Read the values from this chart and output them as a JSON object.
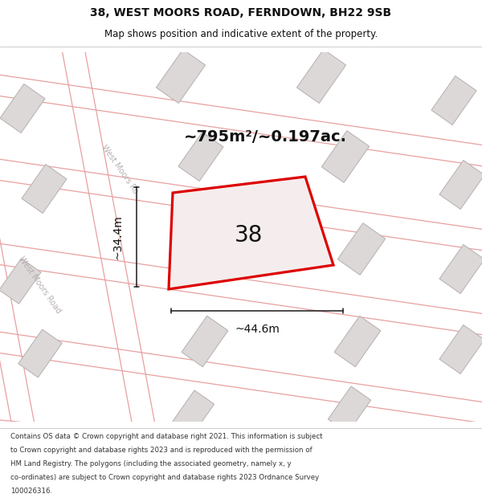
{
  "title_line1": "38, WEST MOORS ROAD, FERNDOWN, BH22 9SB",
  "title_line2": "Map shows position and indicative extent of the property.",
  "area_label": "~795m²/~0.197ac.",
  "width_label": "~44.6m",
  "height_label": "~34.4m",
  "property_number": "38",
  "map_bg": "#f7f4f4",
  "road_line_color": "#e8a0a0",
  "building_fill": "#ddd8d8",
  "building_edge": "#bbb5b5",
  "property_fill": "#f5eded",
  "property_edge": "#dd0000",
  "dim_color": "#1a1a1a",
  "text_color": "#111111",
  "road_label_color": "#b0a8a8",
  "footer_lines": [
    "Contains OS data © Crown copyright and database right 2021. This information is subject",
    "to Crown copyright and database rights 2023 and is reproduced with the permission of",
    "HM Land Registry. The polygons (including the associated geometry, namely x, y",
    "co-ordinates) are subject to Crown copyright and database rights 2023 Ordnance Survey",
    "100026316."
  ],
  "title_fontsize": 10,
  "subtitle_fontsize": 8.5,
  "footer_fontsize": 6.2
}
